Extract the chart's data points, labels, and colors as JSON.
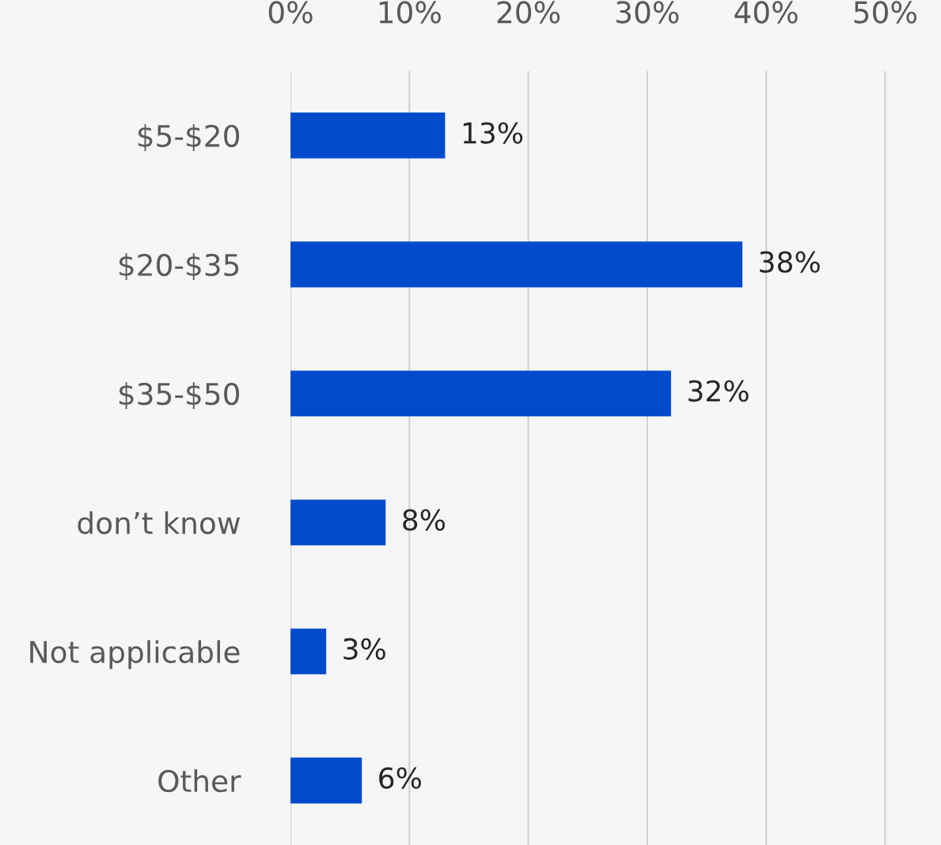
{
  "chart_data": {
    "type": "bar",
    "orientation": "horizontal",
    "categories": [
      "$5-$20",
      "$20-$35",
      "$35-$50",
      "don’t know",
      "Not applicable",
      "Other"
    ],
    "values": [
      13,
      38,
      32,
      8,
      3,
      6
    ],
    "value_labels": [
      "13%",
      "38%",
      "32%",
      "8%",
      "3%",
      "6%"
    ],
    "color": "#004bcc",
    "xlim": [
      0,
      54.7
    ],
    "xticks": [
      {
        "value": 0,
        "label": "0%"
      },
      {
        "value": 10,
        "label": "10%"
      },
      {
        "value": 20,
        "label": "20%"
      },
      {
        "value": 30,
        "label": "30%"
      },
      {
        "value": 40,
        "label": "40%"
      },
      {
        "value": 50,
        "label": "50%"
      }
    ],
    "grid": "x"
  }
}
